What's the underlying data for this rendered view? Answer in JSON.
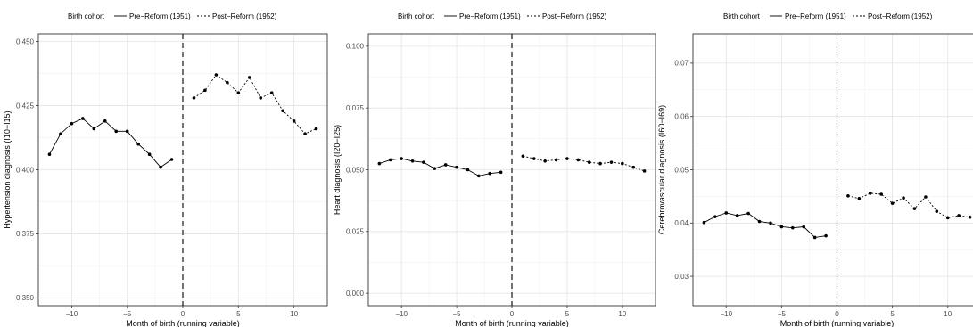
{
  "legend": {
    "title": "Birth cohort",
    "entries": [
      "Pre−Reform (1951)",
      "Post−Reform (1952)"
    ]
  },
  "chart_data": [
    {
      "type": "line",
      "xlabel": "Month of birth (running variable)",
      "ylabel": "Hypertension diagnosis (I10−I15)",
      "xlim": [
        -13,
        13
      ],
      "ylim": [
        0.347,
        0.453
      ],
      "xticks": [
        -10,
        -5,
        0,
        5,
        10
      ],
      "xtick_labels": [
        "−10",
        "−5",
        "0",
        "5",
        "10"
      ],
      "yticks": [
        0.35,
        0.375,
        0.4,
        0.425,
        0.45
      ],
      "ytick_labels": [
        "0.350",
        "0.375",
        "0.400",
        "0.425",
        "0.450"
      ],
      "cutoff": 0,
      "grid": true,
      "legend_position": "top",
      "series": [
        {
          "name": "Pre−Reform (1951)",
          "style": "solid",
          "x": [
            -12,
            -11,
            -10,
            -9,
            -8,
            -7,
            -6,
            -5,
            -4,
            -3,
            -2,
            -1
          ],
          "y": [
            0.406,
            0.414,
            0.418,
            0.42,
            0.416,
            0.419,
            0.415,
            0.415,
            0.41,
            0.406,
            0.401,
            0.404
          ]
        },
        {
          "name": "Post−Reform (1952)",
          "style": "dotted",
          "x": [
            1,
            2,
            3,
            4,
            5,
            6,
            7,
            8,
            9,
            10,
            11,
            12
          ],
          "y": [
            0.428,
            0.431,
            0.437,
            0.434,
            0.43,
            0.436,
            0.428,
            0.43,
            0.423,
            0.419,
            0.414,
            0.416
          ]
        }
      ]
    },
    {
      "type": "line",
      "xlabel": "Month of birth (running variable)",
      "ylabel": "Heart diagnosis (I20−I25)",
      "xlim": [
        -13,
        13
      ],
      "ylim": [
        -0.005,
        0.105
      ],
      "xticks": [
        -10,
        -5,
        0,
        5,
        10
      ],
      "xtick_labels": [
        "−10",
        "−5",
        "0",
        "5",
        "10"
      ],
      "yticks": [
        0.0,
        0.025,
        0.05,
        0.075,
        0.1
      ],
      "ytick_labels": [
        "0.000",
        "0.025",
        "0.050",
        "0.075",
        "0.100"
      ],
      "cutoff": 0,
      "grid": true,
      "legend_position": "top",
      "series": [
        {
          "name": "Pre−Reform (1951)",
          "style": "solid",
          "x": [
            -12,
            -11,
            -10,
            -9,
            -8,
            -7,
            -6,
            -5,
            -4,
            -3,
            -2,
            -1
          ],
          "y": [
            0.0525,
            0.054,
            0.0545,
            0.0535,
            0.053,
            0.0505,
            0.052,
            0.051,
            0.05,
            0.0475,
            0.0485,
            0.049
          ]
        },
        {
          "name": "Post−Reform (1952)",
          "style": "dotted",
          "x": [
            1,
            2,
            3,
            4,
            5,
            6,
            7,
            8,
            9,
            10,
            11,
            12
          ],
          "y": [
            0.0555,
            0.0545,
            0.0535,
            0.054,
            0.0545,
            0.054,
            0.053,
            0.0525,
            0.053,
            0.0525,
            0.051,
            0.0495
          ]
        }
      ]
    },
    {
      "type": "line",
      "xlabel": "Month of birth (running variable)",
      "ylabel": "Cerebrovascular diagnosis (I60−I69)",
      "xlim": [
        -13,
        13
      ],
      "ylim": [
        0.0245,
        0.0755
      ],
      "xticks": [
        -10,
        -5,
        0,
        5,
        10
      ],
      "xtick_labels": [
        "−10",
        "−5",
        "0",
        "5",
        "10"
      ],
      "yticks": [
        0.03,
        0.04,
        0.05,
        0.06,
        0.07
      ],
      "ytick_labels": [
        "0.03",
        "0.04",
        "0.05",
        "0.06",
        "0.07"
      ],
      "cutoff": 0,
      "grid": true,
      "legend_position": "top",
      "series": [
        {
          "name": "Pre−Reform (1951)",
          "style": "solid",
          "x": [
            -12,
            -11,
            -10,
            -9,
            -8,
            -7,
            -6,
            -5,
            -4,
            -3,
            -2,
            -1
          ],
          "y": [
            0.0401,
            0.0412,
            0.0419,
            0.0414,
            0.0418,
            0.0403,
            0.04,
            0.0393,
            0.0391,
            0.0393,
            0.0373,
            0.0376
          ]
        },
        {
          "name": "Post−Reform (1952)",
          "style": "dotted",
          "x": [
            1,
            2,
            3,
            4,
            5,
            6,
            7,
            8,
            9,
            10,
            11,
            12
          ],
          "y": [
            0.0451,
            0.0446,
            0.0456,
            0.0454,
            0.0437,
            0.0447,
            0.0427,
            0.0449,
            0.0422,
            0.041,
            0.0414,
            0.0411
          ]
        }
      ]
    }
  ]
}
